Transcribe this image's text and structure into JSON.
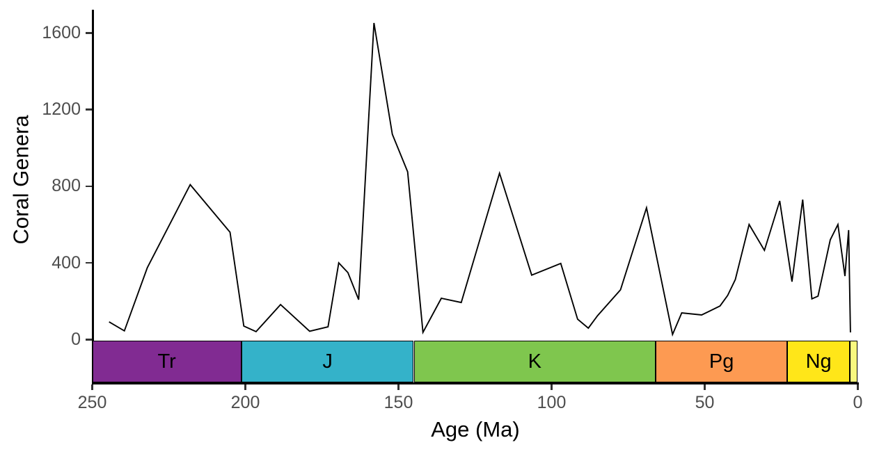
{
  "chart_data": {
    "type": "line",
    "title": "",
    "xlabel": "Age (Ma)",
    "ylabel": "Coral Genera",
    "x_axis": {
      "label": "Age (Ma)",
      "min": 250,
      "max": 0,
      "reversed": true,
      "ticks": [
        250,
        200,
        150,
        100,
        50,
        0
      ]
    },
    "y_axis": {
      "label": "Coral Genera",
      "min": 0,
      "max": 1720,
      "ticks": [
        0,
        400,
        800,
        1200,
        1600
      ]
    },
    "grid": false,
    "legend": "none",
    "series": [
      {
        "name": "coral-genera",
        "color": "#000000",
        "points_format": [
          "age_Ma",
          "genera"
        ],
        "points": [
          [
            244.5,
            92
          ],
          [
            239.5,
            45
          ],
          [
            232,
            375
          ],
          [
            218,
            808
          ],
          [
            205,
            560
          ],
          [
            200.5,
            70
          ],
          [
            196.5,
            41
          ],
          [
            188.5,
            182
          ],
          [
            179,
            43
          ],
          [
            173,
            66
          ],
          [
            169.5,
            400
          ],
          [
            166.5,
            349
          ],
          [
            163,
            208
          ],
          [
            158,
            1652
          ],
          [
            152,
            1071
          ],
          [
            147,
            875
          ],
          [
            142,
            37
          ],
          [
            136,
            215
          ],
          [
            129.5,
            193
          ],
          [
            125,
            436
          ],
          [
            117,
            868
          ],
          [
            106.5,
            336
          ],
          [
            97,
            397
          ],
          [
            91.5,
            106
          ],
          [
            88,
            59
          ],
          [
            85,
            124
          ],
          [
            77.5,
            259
          ],
          [
            69,
            687
          ],
          [
            60.5,
            26
          ],
          [
            57.5,
            139
          ],
          [
            51,
            128
          ],
          [
            45,
            175
          ],
          [
            42.5,
            230
          ],
          [
            40,
            313
          ],
          [
            35.5,
            600
          ],
          [
            30.5,
            465
          ],
          [
            25.5,
            723
          ],
          [
            21.5,
            302
          ],
          [
            18,
            730
          ],
          [
            15,
            212
          ],
          [
            13,
            226
          ],
          [
            9,
            520
          ],
          [
            6.5,
            600
          ],
          [
            4.2,
            331
          ],
          [
            3,
            571
          ],
          [
            2.4,
            37
          ]
        ]
      }
    ],
    "geologic_periods": [
      {
        "label": "Tr",
        "from": 250,
        "to": 201.3,
        "color": "#812B92"
      },
      {
        "label": "J",
        "from": 201.3,
        "to": 145,
        "color": "#34B2C9"
      },
      {
        "label": "K",
        "from": 145,
        "to": 66,
        "color": "#7FC64E"
      },
      {
        "label": "Pg",
        "from": 66,
        "to": 23.03,
        "color": "#FD9A52"
      },
      {
        "label": "Ng",
        "from": 23.03,
        "to": 2.58,
        "color": "#FFE619"
      },
      {
        "label": "",
        "from": 2.58,
        "to": 0,
        "color": "#F9F97F"
      }
    ]
  },
  "colors": {
    "axis": "#000000",
    "tick_label": "#4D4D4D",
    "series_line": "#000000",
    "background": "#ffffff"
  }
}
